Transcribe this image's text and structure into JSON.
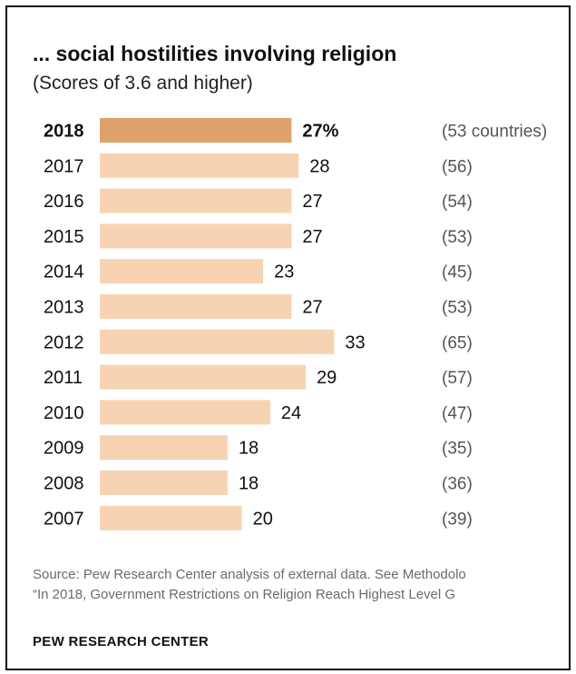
{
  "title": "... social hostilities involving religion",
  "subtitle": "(Scores of 3.6 and higher)",
  "source": {
    "line1": "Source: Pew Research Center analysis of external  data. See Methodolo",
    "line2": "“In 2018, Government Restrictions on Religion Reach Highest Level G"
  },
  "brand": "PEW RESEARCH CENTER",
  "colors": {
    "highlight_bar": "#DFA16C",
    "bar": "#F6D4B3",
    "text": "#222222",
    "muted_text": "#555555"
  },
  "chart_data": {
    "type": "bar",
    "orientation": "horizontal",
    "title": "... social hostilities involving religion",
    "subtitle": "(Scores of 3.6 and higher)",
    "categories": [
      "2018",
      "2017",
      "2016",
      "2015",
      "2014",
      "2013",
      "2012",
      "2011",
      "2010",
      "2009",
      "2008",
      "2007"
    ],
    "values": [
      27,
      28,
      27,
      27,
      23,
      27,
      33,
      29,
      24,
      18,
      18,
      20
    ],
    "value_labels": [
      "27%",
      "28",
      "27",
      "27",
      "23",
      "27",
      "33",
      "29",
      "24",
      "18",
      "18",
      "20"
    ],
    "count_labels": [
      "(53 countries)",
      "(56)",
      "(54)",
      "(53)",
      "(45)",
      "(53)",
      "(65)",
      "(57)",
      "(47)",
      "(35)",
      "(36)",
      "(39)"
    ],
    "highlight": "2018",
    "xlim": [
      0,
      33
    ],
    "grid": false,
    "legend": "none"
  }
}
